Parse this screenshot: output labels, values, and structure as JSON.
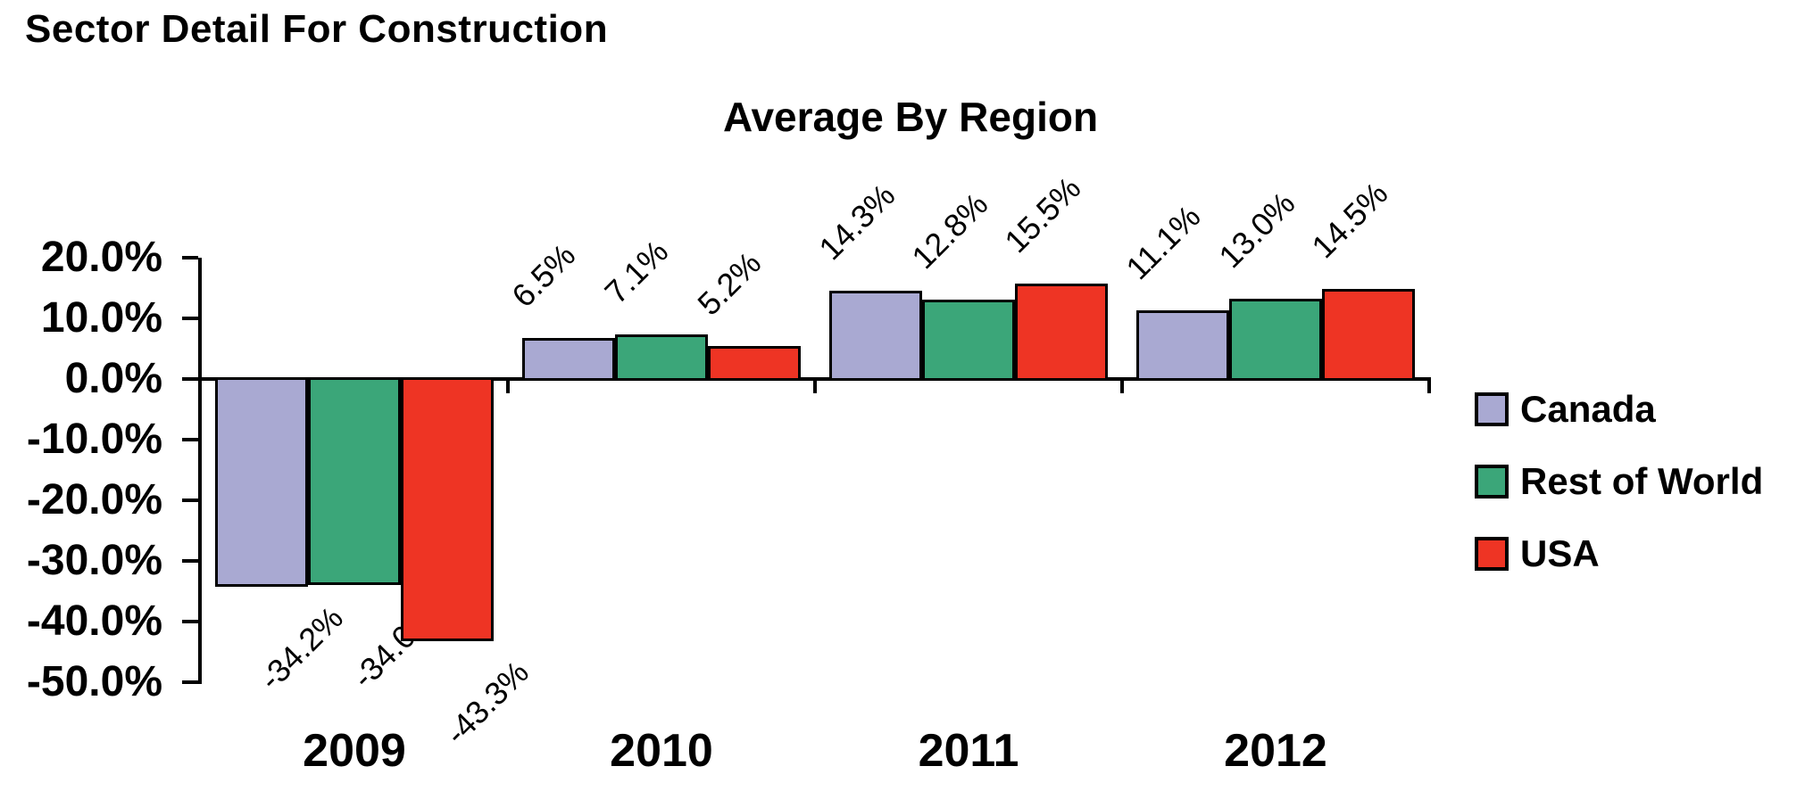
{
  "page": {
    "title": "Sector Detail For Construction"
  },
  "chart_data": {
    "type": "bar",
    "title": "Average By Region",
    "xlabel": "",
    "ylabel": "",
    "categories": [
      "2009",
      "2010",
      "2011",
      "2012"
    ],
    "series": [
      {
        "name": "Canada",
        "color": "#A9A9D2",
        "values": [
          -34.2,
          6.5,
          14.3,
          11.1
        ],
        "labels": [
          "-34.2%",
          "6.5%",
          "14.3%",
          "11.1%"
        ]
      },
      {
        "name": "Rest of World",
        "color": "#3BA679",
        "values": [
          -34.0,
          7.1,
          12.8,
          13.0
        ],
        "labels": [
          "-34.0%",
          "7.1%",
          "12.8%",
          "13.0%"
        ]
      },
      {
        "name": "USA",
        "color": "#EE3424",
        "values": [
          -43.3,
          5.2,
          15.5,
          14.5
        ],
        "labels": [
          "-43.3%",
          "5.2%",
          "15.5%",
          "14.5%"
        ]
      }
    ],
    "ylim": [
      -50,
      20
    ],
    "ytick_step": 10,
    "yticks": [
      "20.0%",
      "10.0%",
      "0.0%",
      "-10.0%",
      "-20.0%",
      "-30.0%",
      "-40.0%",
      "-50.0%"
    ],
    "grid": false,
    "legend_position": "right",
    "bar_label_rotation_deg": -45,
    "axis_color": "#000000",
    "text_color": "#000000",
    "background_color": "#FFFFFF"
  }
}
